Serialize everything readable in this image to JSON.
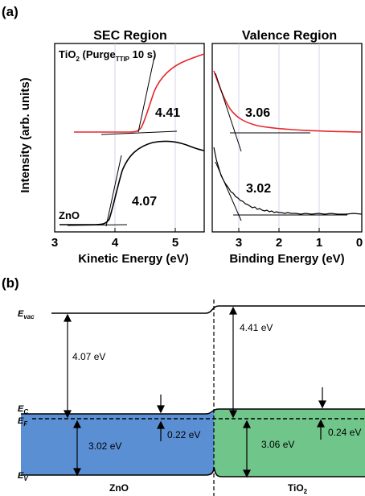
{
  "panel_a": {
    "label": "(a)",
    "y_axis_label": "Intensity (arb. units)",
    "sec": {
      "title": "SEC Region",
      "xlabel": "Kinetic Energy (eV)",
      "ticks": [
        "3",
        "4",
        "5"
      ],
      "tio2_label_pre": "TiO",
      "tio2_label_sub": "2",
      "tio2_label_mid": " (Purge",
      "tio2_label_sub2": "TTIP",
      "tio2_label_post": " 10 s)",
      "zno_label": "ZnO",
      "tio2_value": "4.41",
      "zno_value": "4.07"
    },
    "valence": {
      "title": "Valence Region",
      "xlabel": "Binding Energy (eV)",
      "ticks": [
        "3",
        "2",
        "1",
        "0"
      ],
      "tio2_value": "3.06",
      "zno_value": "3.02"
    }
  },
  "panel_b": {
    "label": "(b)",
    "evac_label": "E",
    "evac_sub": "vac",
    "ec_label": "E",
    "ec_sub": "C",
    "ef_label": "E",
    "ef_sub": "F",
    "ev_label": "E",
    "ev_sub": "V",
    "zno_wf": "4.07 eV",
    "tio2_wf": "4.41 eV",
    "zno_vbm": "3.02 eV",
    "tio2_vbm": "3.06 eV",
    "zno_offset": "0.22 eV",
    "tio2_offset": "0.24 eV",
    "zno_name": "ZnO",
    "tio2_name_pre": "TiO",
    "tio2_name_sub": "2",
    "colors": {
      "zno_fill": "#5b8fd4",
      "tio2_fill": "#6fc58a"
    }
  },
  "chart_data": [
    {
      "type": "line",
      "title": "SEC Region",
      "xlabel": "Kinetic Energy (eV)",
      "ylabel": "Intensity (arb. units)",
      "xlim": [
        3,
        5.5
      ],
      "series": [
        {
          "name": "TiO2 (PurgeTTIP 10 s)",
          "color": "#e8262a",
          "onset": 4.41
        },
        {
          "name": "ZnO",
          "color": "#000000",
          "onset": 4.07
        }
      ]
    },
    {
      "type": "line",
      "title": "Valence Region",
      "xlabel": "Binding Energy (eV)",
      "ylabel": "Intensity (arb. units)",
      "xlim": [
        3.6,
        0
      ],
      "series": [
        {
          "name": "TiO2",
          "color": "#e8262a",
          "onset": 3.06
        },
        {
          "name": "ZnO",
          "color": "#000000",
          "onset": 3.02
        }
      ]
    }
  ]
}
